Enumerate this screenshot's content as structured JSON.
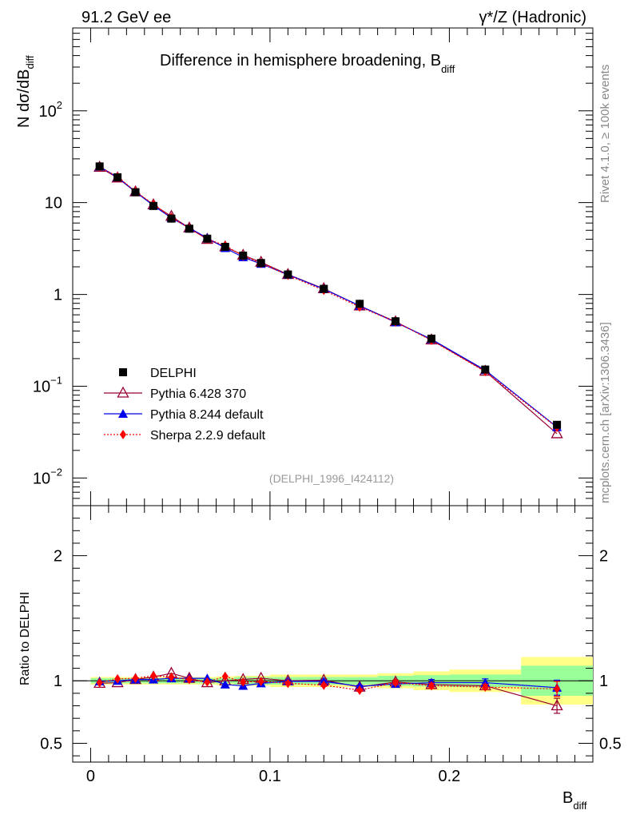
{
  "header": {
    "left": "91.2 GeV ee",
    "right": "γ*/Z (Hadronic)"
  },
  "side_labels": {
    "rivet": "Rivet 4.1.0, ≥ 100k events",
    "mcplots": "mcplots.cern.ch [arXiv:1306.3436]"
  },
  "chart_data": {
    "type": "line",
    "title": "Difference in hemisphere broadening, B",
    "title_sub": "diff",
    "analysis_id": "(DELPHI_1996_I424112)",
    "xlabel": "B",
    "xlabel_sub": "diff",
    "ylabel_prefix": "N  dσ/dB",
    "ylabel_sub": "diff",
    "ratio_ylabel": "Ratio to DELPHI",
    "xlim": [
      -0.01,
      0.28
    ],
    "ylim": [
      0.005,
      800
    ],
    "ratio_ylim": [
      0.35,
      2.4
    ],
    "x_ticks": [
      {
        "value": 0,
        "label": "0"
      },
      {
        "value": 0.1,
        "label": "0.1"
      },
      {
        "value": 0.2,
        "label": "0.2"
      }
    ],
    "y_ticks": [
      {
        "value": 0.01,
        "base": "10",
        "exp": "−2"
      },
      {
        "value": 0.1,
        "base": "10",
        "exp": "−1"
      },
      {
        "value": 1,
        "base": "1",
        "exp": ""
      },
      {
        "value": 10,
        "base": "10",
        "exp": ""
      },
      {
        "value": 100,
        "base": "10",
        "exp": "2"
      }
    ],
    "ratio_ticks": [
      {
        "value": 0.5,
        "label": "0.5"
      },
      {
        "value": 1,
        "label": "1"
      },
      {
        "value": 2,
        "label": "2"
      }
    ],
    "bins": [
      {
        "lo": 0.0,
        "hi": 0.01
      },
      {
        "lo": 0.01,
        "hi": 0.02
      },
      {
        "lo": 0.02,
        "hi": 0.03
      },
      {
        "lo": 0.03,
        "hi": 0.04
      },
      {
        "lo": 0.04,
        "hi": 0.05
      },
      {
        "lo": 0.05,
        "hi": 0.06
      },
      {
        "lo": 0.06,
        "hi": 0.07
      },
      {
        "lo": 0.07,
        "hi": 0.08
      },
      {
        "lo": 0.08,
        "hi": 0.09
      },
      {
        "lo": 0.09,
        "hi": 0.1
      },
      {
        "lo": 0.1,
        "hi": 0.12
      },
      {
        "lo": 0.12,
        "hi": 0.14
      },
      {
        "lo": 0.14,
        "hi": 0.16
      },
      {
        "lo": 0.16,
        "hi": 0.18
      },
      {
        "lo": 0.18,
        "hi": 0.2
      },
      {
        "lo": 0.2,
        "hi": 0.24
      },
      {
        "lo": 0.24,
        "hi": 0.28
      }
    ],
    "x": [
      0.005,
      0.015,
      0.025,
      0.035,
      0.045,
      0.055,
      0.065,
      0.075,
      0.085,
      0.095,
      0.11,
      0.13,
      0.15,
      0.17,
      0.19,
      0.22,
      0.26
    ],
    "data": {
      "name": "DELPHI",
      "values": [
        24.8,
        18.9,
        13.0,
        9.2,
        6.7,
        5.2,
        4.05,
        3.3,
        2.65,
        2.2,
        1.65,
        1.15,
        0.79,
        0.51,
        0.33,
        0.152,
        0.038
      ],
      "band_inner": [
        0.02,
        0.02,
        0.02,
        0.02,
        0.02,
        0.02,
        0.02,
        0.02,
        0.03,
        0.03,
        0.03,
        0.03,
        0.03,
        0.04,
        0.045,
        0.05,
        0.12
      ],
      "band_outer": [
        0.03,
        0.03,
        0.03,
        0.03,
        0.03,
        0.03,
        0.03,
        0.035,
        0.04,
        0.04,
        0.05,
        0.05,
        0.05,
        0.06,
        0.075,
        0.09,
        0.19
      ],
      "color": "#000000"
    },
    "series": [
      {
        "name": "Pythia 6.428 370",
        "color": "#990033",
        "marker": "triangle-open",
        "line": "solid",
        "ratio": [
          0.98,
          0.985,
          1.01,
          1.03,
          1.06,
          1.02,
          0.985,
          1.0,
          1.01,
          1.02,
          1.0,
          1.005,
          0.95,
          0.99,
          0.97,
          0.96,
          0.8
        ],
        "ratio_err": [
          0.005,
          0.005,
          0.005,
          0.005,
          0.005,
          0.005,
          0.005,
          0.005,
          0.005,
          0.005,
          0.01,
          0.01,
          0.01,
          0.015,
          0.02,
          0.02,
          0.06
        ]
      },
      {
        "name": "Pythia 8.244 default",
        "color": "#0000ee",
        "marker": "triangle",
        "line": "solid",
        "ratio": [
          0.995,
          1.0,
          1.01,
          1.01,
          1.02,
          1.02,
          1.02,
          0.97,
          0.96,
          0.98,
          0.995,
          0.995,
          0.955,
          0.975,
          0.985,
          0.985,
          0.945
        ],
        "ratio_err": [
          0.005,
          0.005,
          0.005,
          0.005,
          0.005,
          0.005,
          0.005,
          0.005,
          0.005,
          0.005,
          0.01,
          0.01,
          0.01,
          0.015,
          0.025,
          0.03,
          0.06
        ]
      },
      {
        "name": "Sherpa 2.2.9 default",
        "color": "#ff0000",
        "marker": "diamond",
        "line": "dotted",
        "ratio": [
          0.985,
          1.015,
          1.02,
          1.04,
          1.03,
          1.01,
          0.99,
          1.035,
          0.99,
          0.995,
          0.98,
          0.965,
          0.925,
          0.985,
          0.96,
          0.95,
          0.935
        ],
        "ratio_err": [
          0.005,
          0.005,
          0.005,
          0.005,
          0.005,
          0.005,
          0.005,
          0.005,
          0.005,
          0.005,
          0.01,
          0.01,
          0.01,
          0.015,
          0.02,
          0.02,
          0.06
        ]
      }
    ],
    "legend": [
      "DELPHI",
      "Pythia 6.428 370",
      "Pythia 8.244 default",
      "Sherpa 2.2.9 default"
    ],
    "legend_position": "bottom-left"
  },
  "colors": {
    "band_inner": "#99ff99",
    "band_outer": "#ffff88",
    "axis": "#000000",
    "side_label": "#888888",
    "analysis_id": "#999999"
  }
}
